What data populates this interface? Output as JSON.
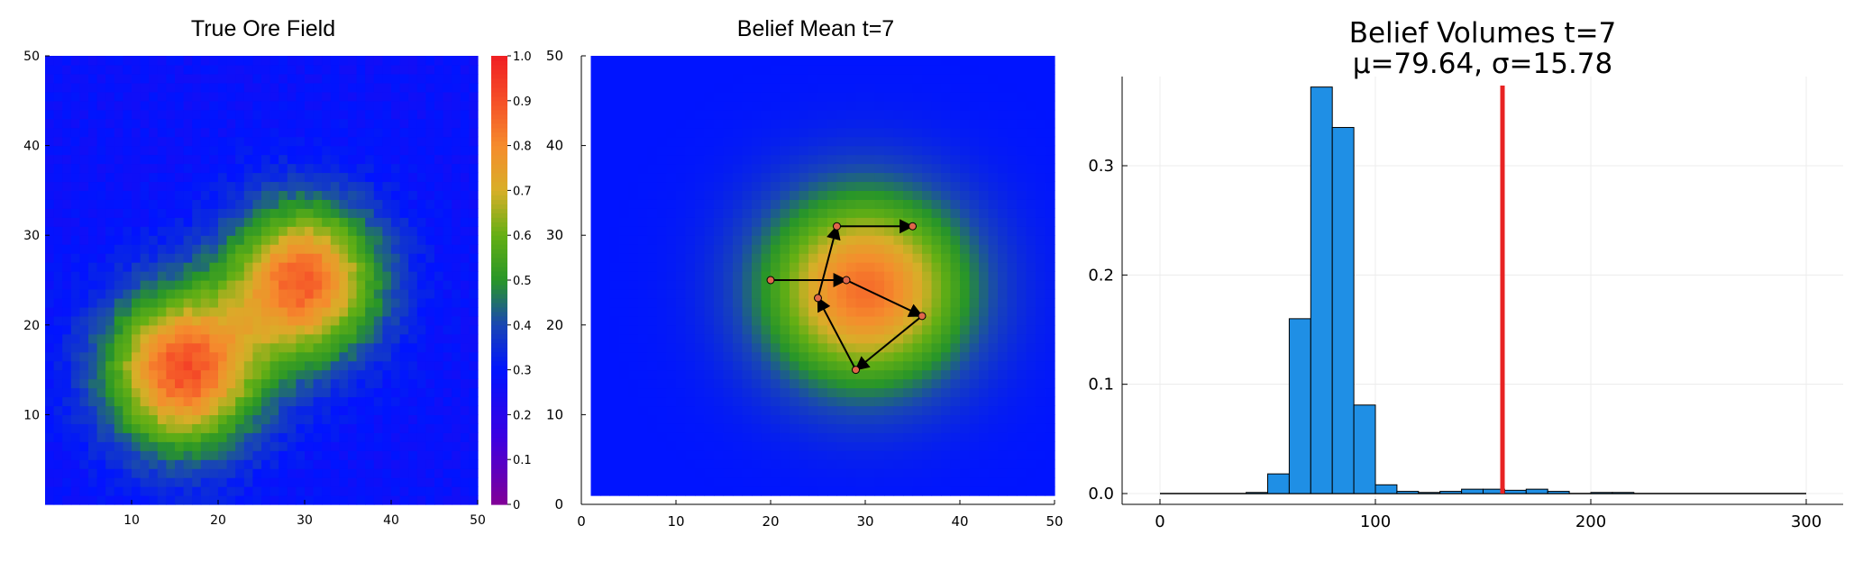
{
  "chart_data": [
    {
      "type": "heatmap",
      "title": "True Ore Field",
      "xlim": [
        0,
        50
      ],
      "ylim": [
        0,
        50
      ],
      "x_ticks": [
        10,
        20,
        30,
        40,
        50
      ],
      "y_ticks": [
        10,
        20,
        30,
        40,
        50
      ],
      "colorbar": {
        "min": 0,
        "max": 1,
        "ticks": [
          0,
          0.1,
          0.2,
          0.3,
          0.4,
          0.5,
          0.6,
          0.7,
          0.8,
          0.9,
          1.0
        ],
        "tick_labels": [
          "0",
          "0.1",
          "0.2",
          "0.3",
          "0.4",
          "0.5",
          "0.6",
          "0.7",
          "0.8",
          "0.9",
          "1.0"
        ]
      },
      "field": {
        "base": 0.28,
        "deposits": [
          {
            "x": 16,
            "y": 15,
            "peak": 0.9,
            "sigma": 6.2
          },
          {
            "x": 30,
            "y": 25,
            "peak": 0.87,
            "sigma": 6.0
          }
        ]
      }
    },
    {
      "type": "heatmap",
      "title": "Belief Mean t=7",
      "xlim": [
        0,
        50
      ],
      "ylim": [
        0,
        50
      ],
      "x_ticks": [
        0,
        10,
        20,
        30,
        40,
        50
      ],
      "y_ticks": [
        0,
        10,
        20,
        30,
        40,
        50
      ],
      "field": {
        "base": 0.3,
        "deposits": [
          {
            "x": 30,
            "y": 24,
            "peak": 0.85,
            "sigma": 7.5
          }
        ]
      },
      "path": [
        {
          "x": 20,
          "y": 25
        },
        {
          "x": 28,
          "y": 25
        },
        {
          "x": 36,
          "y": 21
        },
        {
          "x": 29,
          "y": 15
        },
        {
          "x": 25,
          "y": 23
        },
        {
          "x": 27,
          "y": 31
        },
        {
          "x": 35,
          "y": 31
        }
      ]
    },
    {
      "type": "bar",
      "title": "Belief Volumes t=7",
      "subtitle": "μ=79.64, σ=15.78",
      "xlim": [
        0,
        300
      ],
      "ylim": [
        0,
        0.38
      ],
      "x_ticks": [
        0,
        100,
        200,
        300
      ],
      "y_ticks": [
        0.0,
        0.1,
        0.2,
        0.3
      ],
      "y_tick_labels": [
        "0.0",
        "0.1",
        "0.2",
        "0.3"
      ],
      "grid": true,
      "bins": [
        {
          "x0": 40,
          "x1": 50,
          "value": 0.001
        },
        {
          "x0": 50,
          "x1": 60,
          "value": 0.018
        },
        {
          "x0": 60,
          "x1": 70,
          "value": 0.16
        },
        {
          "x0": 70,
          "x1": 80,
          "value": 0.372
        },
        {
          "x0": 80,
          "x1": 90,
          "value": 0.335
        },
        {
          "x0": 90,
          "x1": 100,
          "value": 0.081
        },
        {
          "x0": 100,
          "x1": 110,
          "value": 0.008
        },
        {
          "x0": 110,
          "x1": 120,
          "value": 0.002
        },
        {
          "x0": 120,
          "x1": 130,
          "value": 0.001
        },
        {
          "x0": 130,
          "x1": 140,
          "value": 0.002
        },
        {
          "x0": 140,
          "x1": 150,
          "value": 0.004
        },
        {
          "x0": 150,
          "x1": 160,
          "value": 0.004
        },
        {
          "x0": 160,
          "x1": 170,
          "value": 0.003
        },
        {
          "x0": 170,
          "x1": 180,
          "value": 0.004
        },
        {
          "x0": 180,
          "x1": 190,
          "value": 0.002
        },
        {
          "x0": 200,
          "x1": 210,
          "value": 0.001
        },
        {
          "x0": 210,
          "x1": 220,
          "value": 0.001
        }
      ],
      "baseline_range": [
        0,
        300
      ],
      "true_volume_line": 159,
      "colors": {
        "bar": "#1f8fe5",
        "line": "#e82323"
      }
    }
  ]
}
